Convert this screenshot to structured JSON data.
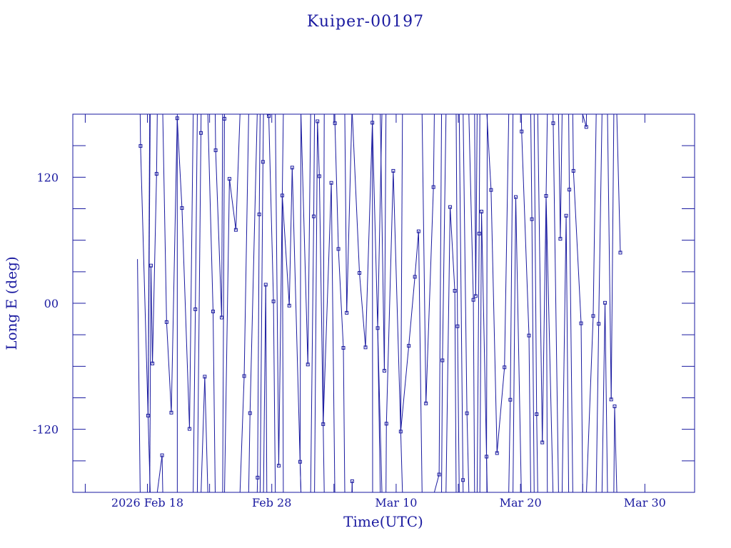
{
  "colors": {
    "ink": "#1a1aa0",
    "line": "#1a1aa0",
    "background": "#ffffff"
  },
  "chart_data": {
    "type": "line",
    "title": "Kuiper-00197",
    "xlabel": "Time(UTC)",
    "ylabel": "Long E (deg)",
    "x_ticks": [
      "2026 Feb 18",
      "Feb 28",
      "Mar 10",
      "Mar 20",
      "Mar 30"
    ],
    "y_ticks": [
      "-120",
      "00",
      "120"
    ],
    "xlim": [
      "2026-02-12",
      "2026-04-03"
    ],
    "ylim": [
      -180,
      180
    ],
    "grid": false,
    "markers": "small squares",
    "series": [
      {
        "x": [
          "2026-02-18"
        ],
        "y": [
          42
        ]
      }
    ]
  }
}
